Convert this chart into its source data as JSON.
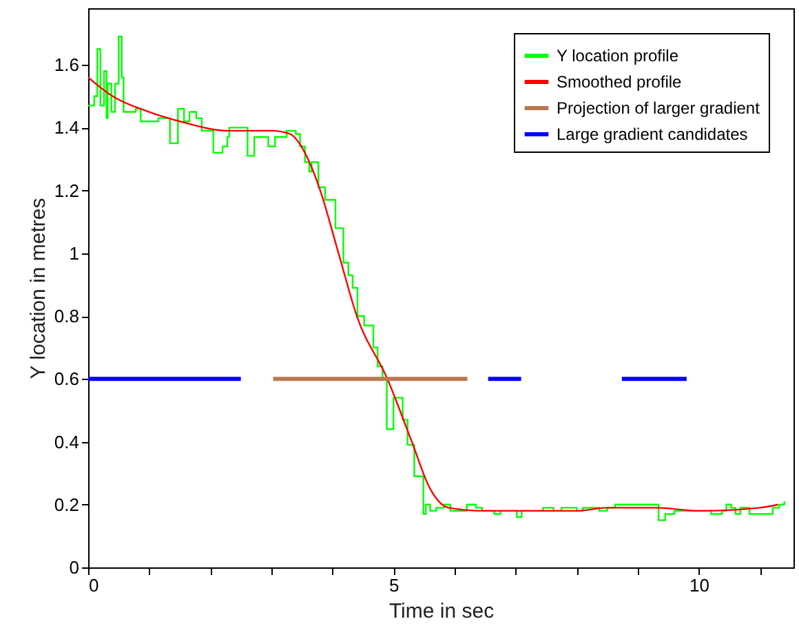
{
  "chart_data": {
    "type": "line",
    "xlabel": "Time in sec",
    "ylabel": "Y location in metres",
    "xlim": [
      0,
      11.55
    ],
    "ylim": [
      0,
      1.78
    ],
    "xticks": [
      0,
      {
        "value": 1,
        "label": null
      },
      {
        "value": 2,
        "label": null
      },
      {
        "value": 3,
        "label": null
      },
      {
        "value": 4,
        "label": null
      },
      5,
      {
        "value": 6,
        "label": null
      },
      {
        "value": 7,
        "label": null
      },
      {
        "value": 8,
        "label": null
      },
      {
        "value": 9,
        "label": null
      },
      10,
      {
        "value": 11,
        "label": null
      }
    ],
    "yticks": [
      0,
      0.2,
      0.4,
      0.6,
      0.8,
      1,
      1.2,
      1.4,
      1.6
    ],
    "grid": false,
    "legend": "top right",
    "series": [
      {
        "name": "Y location profile",
        "color": "#00ff00",
        "type": "step",
        "x": [
          0,
          0.1,
          0.15,
          0.2,
          0.26,
          0.3,
          0.32,
          0.38,
          0.44,
          0.5,
          0.55,
          0.58,
          0.78,
          0.86,
          1.15,
          1.23,
          1.34,
          1.38,
          1.47,
          1.49,
          1.57,
          1.6,
          1.66,
          1.68,
          1.77,
          1.79,
          1.86,
          1.9,
          2.05,
          2.09,
          2.2,
          2.24,
          2.28,
          2.31,
          2.58,
          2.61,
          2.71,
          2.72,
          2.91,
          2.95,
          3.02,
          3.06,
          3.21,
          3.25,
          3.4,
          3.47,
          3.55,
          3.62,
          3.66,
          3.73,
          3.77,
          3.85,
          3.88,
          4.05,
          4.18,
          4.26,
          4.33,
          4.41,
          4.52,
          4.67,
          4.74,
          4.82,
          4.89,
          4.97,
          5.0,
          5.1,
          5.15,
          5.23,
          5.3,
          5.34,
          5.41,
          5.49,
          5.53,
          5.6,
          5.7,
          5.83,
          5.93,
          6.13,
          6.2,
          6.35,
          6.45,
          6.65,
          6.75,
          7.02,
          7.1,
          7.32,
          7.45,
          7.62,
          7.75,
          8.0,
          8.1,
          8.37,
          8.5,
          8.63,
          9.11,
          9.34,
          9.45,
          9.6,
          9.71,
          10.09,
          10.2,
          10.38,
          10.45,
          10.53,
          10.6,
          10.68,
          10.83,
          10.98,
          11.21,
          11.32,
          11.4
        ],
        "values": [
          1.47,
          1.5,
          1.65,
          1.47,
          1.58,
          1.43,
          1.54,
          1.45,
          1.54,
          1.69,
          1.56,
          1.45,
          1.46,
          1.42,
          1.43,
          1.43,
          1.35,
          1.35,
          1.46,
          1.46,
          1.42,
          1.42,
          1.45,
          1.45,
          1.43,
          1.43,
          1.39,
          1.39,
          1.32,
          1.32,
          1.34,
          1.34,
          1.37,
          1.4,
          1.4,
          1.31,
          1.31,
          1.37,
          1.37,
          1.34,
          1.34,
          1.37,
          1.37,
          1.39,
          1.38,
          1.34,
          1.29,
          1.26,
          1.29,
          1.29,
          1.21,
          1.21,
          1.17,
          1.08,
          0.97,
          0.93,
          0.89,
          0.8,
          0.77,
          0.7,
          0.64,
          0.6,
          0.44,
          0.44,
          0.54,
          0.54,
          0.47,
          0.39,
          0.39,
          0.29,
          0.29,
          0.17,
          0.2,
          0.18,
          0.19,
          0.2,
          0.18,
          0.18,
          0.2,
          0.19,
          0.18,
          0.17,
          0.18,
          0.16,
          0.18,
          0.18,
          0.19,
          0.18,
          0.19,
          0.18,
          0.19,
          0.18,
          0.19,
          0.2,
          0.2,
          0.15,
          0.17,
          0.18,
          0.18,
          0.18,
          0.17,
          0.18,
          0.2,
          0.19,
          0.17,
          0.19,
          0.17,
          0.17,
          0.19,
          0.2,
          0.21
        ]
      },
      {
        "name": "Smoothed profile",
        "color": "#ff0000",
        "x": [
          0,
          0.4,
          1.0,
          1.5,
          2.3,
          3.0,
          3.3,
          3.6,
          3.8,
          4.1,
          4.4,
          4.9,
          5.3,
          5.6,
          5.9,
          6.5,
          8.0,
          8.5,
          9.3,
          10.0,
          11.0,
          11.3
        ],
        "values": [
          1.56,
          1.5,
          1.45,
          1.42,
          1.39,
          1.39,
          1.38,
          1.3,
          1.2,
          1.0,
          0.8,
          0.6,
          0.4,
          0.25,
          0.19,
          0.18,
          0.18,
          0.19,
          0.19,
          0.18,
          0.19,
          0.2
        ]
      },
      {
        "name": "Projection of larger gradient",
        "color": "#b87850",
        "x": [
          3.03,
          6.21
        ],
        "values": [
          0.6,
          0.6
        ]
      },
      {
        "name": "Large gradient candidates",
        "color": "#0000ff",
        "x": [
          0,
          2.5,
          2.6,
          6.55,
          7.09,
          7.2,
          8.74,
          9.8
        ],
        "values": [
          0.6,
          0.6,
          null,
          0.6,
          0.6,
          null,
          0.6,
          0.6
        ]
      }
    ]
  }
}
